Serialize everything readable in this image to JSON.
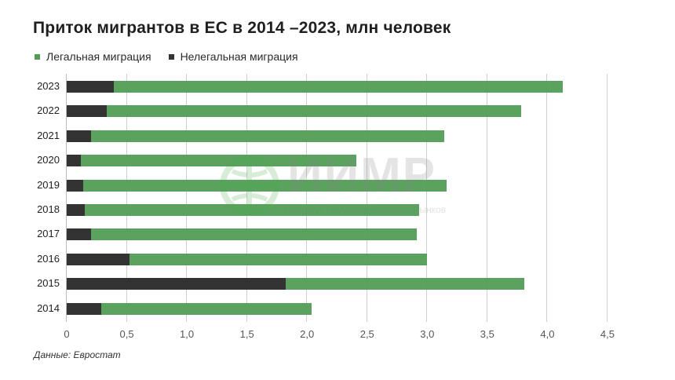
{
  "title": "Приток мигрантов в ЕС в 2014 –2023, млн человек",
  "legend": [
    {
      "label": "Легальная миграция",
      "color": "#519d55"
    },
    {
      "label": "Нелегальная миграция",
      "color": "#333333"
    }
  ],
  "source": "Данные: Евростат",
  "watermark": {
    "name": "ИИМР",
    "subtitle": "Институт Изучения Мировых Рынков"
  },
  "chart_data": {
    "type": "bar",
    "orientation": "horizontal",
    "stacked": true,
    "title": "Приток мигрантов в ЕС в 2014 –2023, млн человек",
    "xlabel": "",
    "ylabel": "",
    "xlim": [
      0,
      4.5
    ],
    "xticks": [
      "0",
      "0,5",
      "1,0",
      "1,5",
      "2,0",
      "2,5",
      "3,0",
      "3,5",
      "4,0",
      "4,5"
    ],
    "grid": true,
    "legend_position": "top-left",
    "categories": [
      "2023",
      "2022",
      "2021",
      "2020",
      "2019",
      "2018",
      "2017",
      "2016",
      "2015",
      "2014"
    ],
    "series": [
      {
        "name": "Нелегальная миграция",
        "color": "#333333",
        "values": [
          0.39,
          0.33,
          0.2,
          0.12,
          0.14,
          0.15,
          0.2,
          0.52,
          1.82,
          0.29
        ]
      },
      {
        "name": "Легальная миграция",
        "color": "#519d55",
        "values": [
          3.74,
          3.45,
          2.94,
          2.29,
          3.02,
          2.78,
          2.71,
          2.48,
          1.99,
          1.75
        ]
      }
    ],
    "totals": [
      4.13,
      3.78,
      3.14,
      2.41,
      3.16,
      2.93,
      2.91,
      3.0,
      3.81,
      2.04
    ]
  }
}
